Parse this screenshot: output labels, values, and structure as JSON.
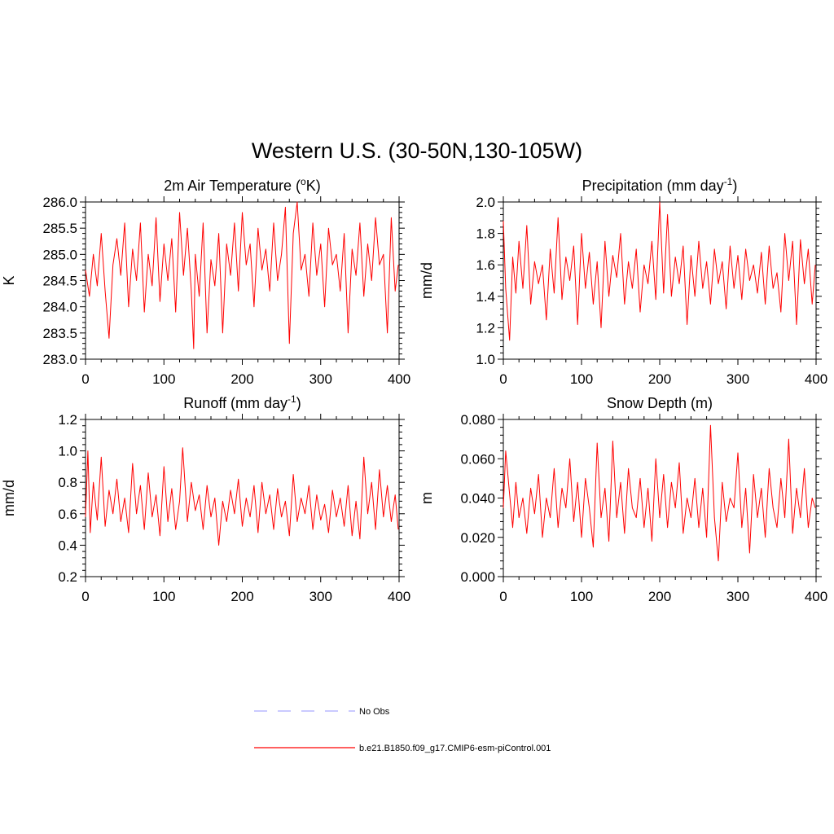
{
  "figure": {
    "title": "Western U.S. (30-50N,130-105W)"
  },
  "legend": {
    "entries": [
      {
        "label": "No Obs",
        "color": "#aaaaff",
        "style": "dashed"
      },
      {
        "label": "b.e21.B1850.f09_g17.CMIP6-esm-piControl.001",
        "color": "#ff0000",
        "style": "solid"
      }
    ]
  },
  "chart_data": [
    {
      "type": "line",
      "panel": "top-left",
      "title_main": "2m Air Temperature (",
      "title_sup": "o",
      "title_tail": "K)",
      "ylabel": "K",
      "xlim": [
        0,
        400
      ],
      "ylim": [
        283.0,
        286.0
      ],
      "xticks": [
        0,
        100,
        200,
        300,
        400
      ],
      "xtick_labels": [
        "0",
        "100",
        "200",
        "300",
        "400"
      ],
      "yticks": [
        283.0,
        283.5,
        284.0,
        284.5,
        285.0,
        285.5,
        286.0
      ],
      "ytick_labels": [
        "283.0",
        "283.5",
        "284.0",
        "284.5",
        "285.0",
        "285.5",
        "286.0"
      ],
      "series_color": "#ff0000",
      "x": [
        0,
        5,
        10,
        15,
        20,
        25,
        30,
        35,
        40,
        45,
        50,
        55,
        60,
        65,
        70,
        75,
        80,
        85,
        90,
        95,
        100,
        105,
        110,
        115,
        120,
        125,
        130,
        135,
        138,
        140,
        145,
        150,
        155,
        160,
        165,
        170,
        175,
        180,
        185,
        190,
        195,
        200,
        205,
        210,
        215,
        220,
        225,
        230,
        235,
        240,
        245,
        250,
        255,
        260,
        265,
        270,
        275,
        280,
        285,
        290,
        295,
        300,
        305,
        310,
        315,
        320,
        325,
        330,
        335,
        340,
        345,
        350,
        355,
        360,
        365,
        370,
        375,
        380,
        385,
        390,
        395,
        399
      ],
      "values": [
        284.7,
        284.2,
        285.0,
        284.4,
        285.4,
        284.3,
        283.4,
        284.8,
        285.3,
        284.6,
        285.6,
        284.0,
        285.1,
        284.5,
        285.6,
        283.9,
        285.0,
        284.4,
        285.7,
        284.1,
        285.2,
        284.5,
        285.3,
        283.9,
        285.8,
        284.6,
        285.5,
        284.3,
        283.2,
        285.0,
        284.2,
        285.6,
        283.5,
        284.9,
        284.4,
        285.4,
        283.5,
        285.2,
        284.6,
        285.6,
        284.3,
        285.8,
        284.8,
        285.2,
        284.0,
        285.5,
        284.7,
        285.1,
        284.3,
        285.6,
        284.5,
        285.0,
        285.9,
        283.3,
        285.4,
        286.0,
        284.7,
        285.0,
        284.2,
        285.6,
        284.6,
        285.2,
        284.0,
        285.5,
        284.8,
        285.0,
        284.3,
        285.4,
        283.5,
        285.1,
        284.6,
        285.6,
        284.2,
        285.2,
        284.5,
        285.7,
        284.8,
        285.0,
        283.5,
        285.7,
        284.3,
        284.8
      ]
    },
    {
      "type": "line",
      "panel": "top-right",
      "title_main": "Precipitation (mm day",
      "title_sup": "-1",
      "title_tail": ")",
      "ylabel": "mm/d",
      "xlim": [
        0,
        400
      ],
      "ylim": [
        1.0,
        2.0
      ],
      "xticks": [
        0,
        100,
        200,
        300,
        400
      ],
      "xtick_labels": [
        "0",
        "100",
        "200",
        "300",
        "400"
      ],
      "yticks": [
        1.0,
        1.2,
        1.4,
        1.6,
        1.8,
        2.0
      ],
      "ytick_labels": [
        "1.0",
        "1.2",
        "1.4",
        "1.6",
        "1.8",
        "2.0"
      ],
      "series_color": "#ff0000",
      "x": [
        0,
        3,
        8,
        12,
        16,
        20,
        25,
        30,
        35,
        40,
        45,
        50,
        55,
        60,
        65,
        70,
        75,
        80,
        85,
        90,
        95,
        100,
        105,
        110,
        115,
        120,
        125,
        130,
        135,
        140,
        145,
        150,
        155,
        160,
        165,
        170,
        175,
        180,
        185,
        190,
        195,
        200,
        205,
        210,
        215,
        220,
        225,
        230,
        235,
        240,
        245,
        250,
        255,
        260,
        265,
        270,
        275,
        280,
        285,
        290,
        295,
        300,
        305,
        310,
        315,
        320,
        325,
        330,
        335,
        340,
        345,
        350,
        355,
        360,
        365,
        370,
        375,
        380,
        385,
        390,
        395,
        399
      ],
      "values": [
        1.88,
        1.45,
        1.12,
        1.65,
        1.42,
        1.75,
        1.45,
        1.85,
        1.35,
        1.62,
        1.48,
        1.6,
        1.25,
        1.7,
        1.42,
        1.9,
        1.38,
        1.65,
        1.5,
        1.72,
        1.22,
        1.8,
        1.45,
        1.68,
        1.35,
        1.62,
        1.2,
        1.75,
        1.4,
        1.66,
        1.52,
        1.8,
        1.35,
        1.62,
        1.45,
        1.7,
        1.3,
        1.6,
        1.48,
        1.75,
        1.38,
        2.0,
        1.42,
        1.92,
        1.4,
        1.65,
        1.48,
        1.72,
        1.22,
        1.66,
        1.4,
        1.75,
        1.45,
        1.62,
        1.35,
        1.7,
        1.48,
        1.62,
        1.32,
        1.72,
        1.45,
        1.66,
        1.38,
        1.7,
        1.5,
        1.6,
        1.42,
        1.68,
        1.35,
        1.72,
        1.45,
        1.55,
        1.3,
        1.8,
        1.5,
        1.75,
        1.22,
        1.76,
        1.48,
        1.7,
        1.35,
        1.6
      ]
    },
    {
      "type": "line",
      "panel": "bottom-left",
      "title_main": "Runoff (mm day",
      "title_sup": "-1",
      "title_tail": ")",
      "ylabel": "mm/d",
      "xlim": [
        0,
        400
      ],
      "ylim": [
        0.2,
        1.2
      ],
      "xticks": [
        0,
        100,
        200,
        300,
        400
      ],
      "xtick_labels": [
        "0",
        "100",
        "200",
        "300",
        "400"
      ],
      "yticks": [
        0.2,
        0.4,
        0.6,
        0.8,
        1.0,
        1.2
      ],
      "ytick_labels": [
        "0.2",
        "0.4",
        "0.6",
        "0.8",
        "1.0",
        "1.2"
      ],
      "series_color": "#ff0000",
      "x": [
        0,
        3,
        6,
        10,
        15,
        20,
        25,
        30,
        35,
        40,
        45,
        50,
        55,
        60,
        65,
        70,
        75,
        80,
        85,
        90,
        95,
        100,
        105,
        110,
        115,
        120,
        124,
        130,
        135,
        140,
        145,
        150,
        155,
        160,
        165,
        170,
        175,
        180,
        185,
        190,
        195,
        200,
        205,
        210,
        215,
        220,
        225,
        230,
        235,
        240,
        245,
        250,
        255,
        260,
        265,
        270,
        275,
        280,
        285,
        290,
        295,
        300,
        305,
        310,
        315,
        320,
        325,
        330,
        335,
        340,
        345,
        350,
        355,
        360,
        365,
        370,
        375,
        380,
        385,
        390,
        395,
        399
      ],
      "values": [
        0.58,
        1.0,
        0.48,
        0.8,
        0.56,
        0.96,
        0.52,
        0.75,
        0.6,
        0.82,
        0.55,
        0.7,
        0.48,
        0.92,
        0.6,
        0.78,
        0.5,
        0.86,
        0.58,
        0.72,
        0.46,
        0.9,
        0.55,
        0.76,
        0.5,
        0.68,
        1.02,
        0.55,
        0.8,
        0.62,
        0.72,
        0.5,
        0.78,
        0.58,
        0.7,
        0.4,
        0.68,
        0.55,
        0.75,
        0.6,
        0.82,
        0.52,
        0.7,
        0.58,
        0.78,
        0.48,
        0.8,
        0.6,
        0.72,
        0.5,
        0.76,
        0.58,
        0.68,
        0.46,
        0.85,
        0.55,
        0.7,
        0.6,
        0.78,
        0.5,
        0.72,
        0.56,
        0.66,
        0.48,
        0.75,
        0.58,
        0.7,
        0.52,
        0.78,
        0.46,
        0.68,
        0.44,
        0.96,
        0.6,
        0.8,
        0.5,
        0.88,
        0.58,
        0.78,
        0.55,
        0.72,
        0.5
      ]
    },
    {
      "type": "line",
      "panel": "bottom-right",
      "title_main": "Snow Depth (m)",
      "title_sup": "",
      "title_tail": "",
      "ylabel": "m",
      "xlim": [
        0,
        400
      ],
      "ylim": [
        0.0,
        0.08
      ],
      "xticks": [
        0,
        100,
        200,
        300,
        400
      ],
      "xtick_labels": [
        "0",
        "100",
        "200",
        "300",
        "400"
      ],
      "yticks": [
        0.0,
        0.02,
        0.04,
        0.06,
        0.08
      ],
      "ytick_labels": [
        "0.000",
        "0.020",
        "0.040",
        "0.060",
        "0.080"
      ],
      "series_color": "#ff0000",
      "x": [
        0,
        3,
        8,
        12,
        16,
        20,
        25,
        30,
        35,
        40,
        45,
        50,
        55,
        60,
        65,
        70,
        75,
        80,
        85,
        90,
        95,
        100,
        105,
        110,
        115,
        120,
        125,
        130,
        135,
        140,
        145,
        150,
        155,
        160,
        165,
        170,
        175,
        180,
        185,
        190,
        195,
        200,
        205,
        210,
        215,
        220,
        225,
        230,
        235,
        240,
        245,
        250,
        255,
        260,
        265,
        270,
        275,
        280,
        285,
        290,
        295,
        300,
        305,
        310,
        315,
        320,
        325,
        330,
        335,
        340,
        345,
        350,
        355,
        360,
        365,
        370,
        375,
        380,
        385,
        390,
        395,
        399
      ],
      "values": [
        0.035,
        0.064,
        0.042,
        0.025,
        0.048,
        0.03,
        0.04,
        0.022,
        0.045,
        0.032,
        0.052,
        0.02,
        0.04,
        0.03,
        0.055,
        0.025,
        0.045,
        0.035,
        0.06,
        0.028,
        0.048,
        0.02,
        0.05,
        0.035,
        0.015,
        0.068,
        0.03,
        0.045,
        0.018,
        0.069,
        0.03,
        0.048,
        0.022,
        0.055,
        0.035,
        0.03,
        0.05,
        0.025,
        0.045,
        0.018,
        0.06,
        0.03,
        0.052,
        0.025,
        0.048,
        0.035,
        0.058,
        0.022,
        0.04,
        0.03,
        0.05,
        0.025,
        0.045,
        0.02,
        0.077,
        0.03,
        0.008,
        0.048,
        0.028,
        0.04,
        0.035,
        0.063,
        0.025,
        0.045,
        0.012,
        0.052,
        0.03,
        0.045,
        0.02,
        0.055,
        0.035,
        0.025,
        0.05,
        0.03,
        0.07,
        0.022,
        0.045,
        0.03,
        0.055,
        0.025,
        0.04,
        0.035
      ]
    }
  ]
}
